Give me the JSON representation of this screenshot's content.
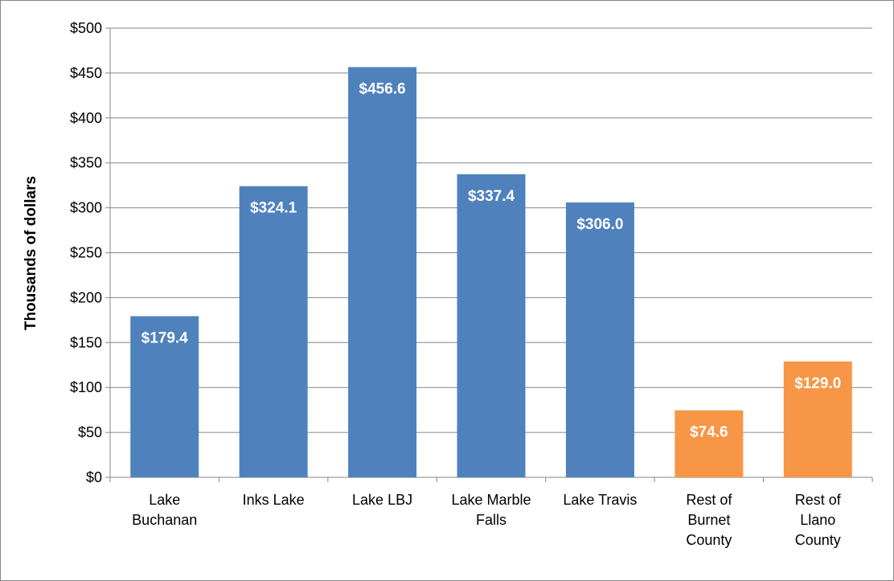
{
  "chart_data": {
    "type": "bar",
    "y_axis_label": "Thousands of dollars",
    "categories": [
      "Lake Buchanan",
      "Inks Lake",
      "Lake LBJ",
      "Lake Marble Falls",
      "Lake Travis",
      "Rest of Burnet County",
      "Rest of Llano County"
    ],
    "values": [
      179.4,
      324.1,
      456.6,
      337.4,
      306.0,
      74.6,
      129.0
    ],
    "value_labels": [
      "$179.4",
      "$324.1",
      "$456.6",
      "$337.4",
      "$306.0",
      "$74.6",
      "$129.0"
    ],
    "colors": [
      "#4f81bd",
      "#4f81bd",
      "#4f81bd",
      "#4f81bd",
      "#4f81bd",
      "#f79646",
      "#f79646"
    ],
    "ylim": [
      0,
      500
    ],
    "yticks": [
      {
        "value": 0,
        "label": "$0"
      },
      {
        "value": 50,
        "label": "$50"
      },
      {
        "value": 100,
        "label": "$100"
      },
      {
        "value": 150,
        "label": "$150"
      },
      {
        "value": 200,
        "label": "$200"
      },
      {
        "value": 250,
        "label": "$250"
      },
      {
        "value": 300,
        "label": "$300"
      },
      {
        "value": 350,
        "label": "$350"
      },
      {
        "value": 400,
        "label": "$400"
      },
      {
        "value": 450,
        "label": "$450"
      },
      {
        "value": 500,
        "label": "$500"
      }
    ],
    "grid": true
  }
}
